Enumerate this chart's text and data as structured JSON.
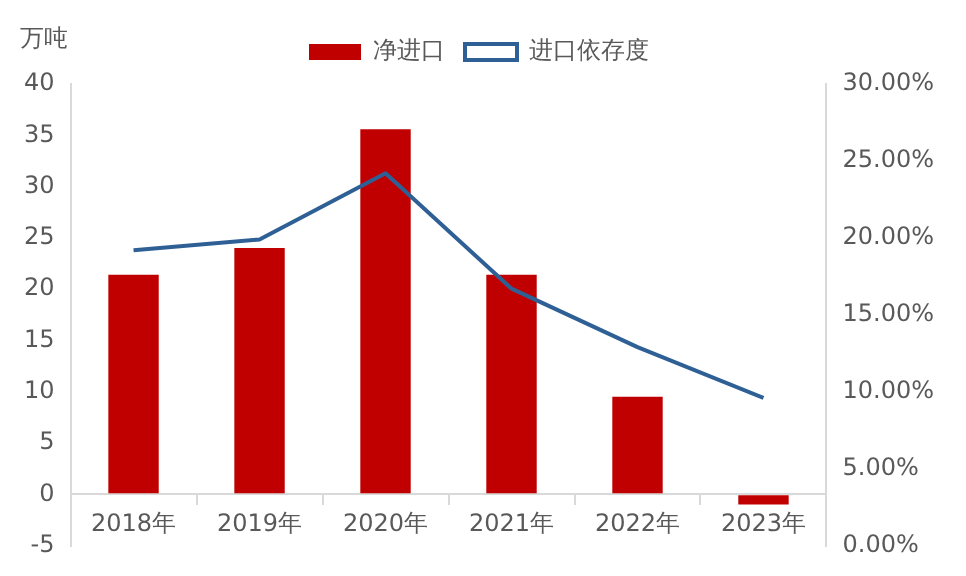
{
  "chart_data": {
    "type": "bar",
    "ylabel": "万吨",
    "categories": [
      "2018年",
      "2019年",
      "2020年",
      "2021年",
      "2022年",
      "2023年"
    ],
    "series": [
      {
        "name": "净进口",
        "color": "#c00000",
        "values": [
          21.4,
          24.0,
          35.6,
          21.4,
          9.5,
          -1.0
        ]
      },
      {
        "name": "进口依存度",
        "type": "line",
        "axis": "y2",
        "color": "#2e6096",
        "values": [
          19.2,
          19.9,
          24.2,
          16.7,
          12.9,
          9.6
        ]
      }
    ],
    "ylim": [
      -5,
      40
    ],
    "yticks": [
      -5,
      0,
      5,
      10,
      15,
      20,
      25,
      30,
      35,
      40
    ],
    "y2lim": [
      0,
      30
    ],
    "y2ticks": [
      {
        "value": 0,
        "label": "0.00%"
      },
      {
        "value": 5,
        "label": "5.00%"
      },
      {
        "value": 10,
        "label": "10.00%"
      },
      {
        "value": 15,
        "label": "15.00%"
      },
      {
        "value": 20,
        "label": "20.00%"
      },
      {
        "value": 25,
        "label": "25.00%"
      },
      {
        "value": 30,
        "label": "30.00%"
      }
    ],
    "grid": false,
    "legend": "top",
    "marker": "none",
    "line_style": "solid"
  }
}
